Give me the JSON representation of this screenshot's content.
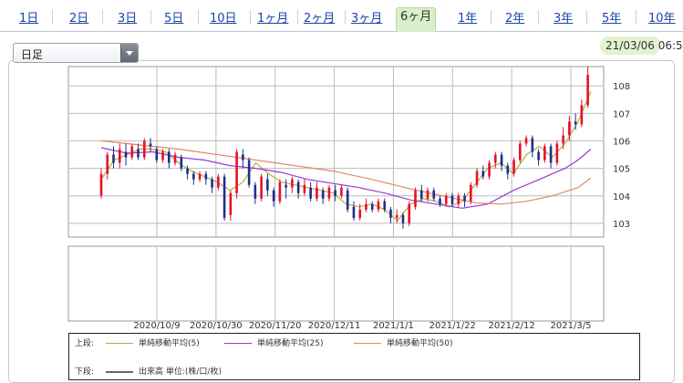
{
  "tabs": [
    {
      "label": "1日",
      "active": false
    },
    {
      "label": "2日",
      "active": false
    },
    {
      "label": "3日",
      "active": false
    },
    {
      "label": "5日",
      "active": false
    },
    {
      "label": "10日",
      "active": false
    },
    {
      "label": "1ヶ月",
      "active": false
    },
    {
      "label": "2ヶ月",
      "active": false
    },
    {
      "label": "3ヶ月",
      "active": false
    },
    {
      "label": "6ヶ月",
      "active": true
    },
    {
      "label": "1年",
      "active": false
    },
    {
      "label": "2年",
      "active": false
    },
    {
      "label": "3年",
      "active": false
    },
    {
      "label": "5年",
      "active": false
    },
    {
      "label": "10年",
      "active": false
    }
  ],
  "period_select": {
    "value": "日足"
  },
  "timestamp": "21/03/06 06:5",
  "legend": {
    "upper_label": "上段:",
    "lower_label": "下段:",
    "ma5": "単純移動平均(5)",
    "ma25": "単純移動平均(25)",
    "ma50": "単純移動平均(50)",
    "volume": "出来高 単位:(株/口/枚)"
  },
  "colors": {
    "up_candle": "#e8102a",
    "down_candle": "#1d2f8c",
    "ma5": "#b5b03c",
    "ma25": "#9a38d6",
    "ma50": "#e0886a",
    "tab_active_bg": "#d8efc9"
  },
  "chart_data": {
    "type": "candlestick",
    "ylim": [
      102.5,
      108.7
    ],
    "y_ticks": [
      103,
      104,
      105,
      106,
      107,
      108
    ],
    "x_ticks": [
      "2020/10/9",
      "2020/10/30",
      "2020/11/20",
      "2020/12/11",
      "2021/1/1",
      "2021/1/22",
      "2021/2/12",
      "2021/3/5"
    ],
    "series": [
      {
        "name": "単純移動平均(5)",
        "points": [
          [
            0,
            104.6
          ],
          [
            5,
            105.3
          ],
          [
            10,
            105.5
          ],
          [
            15,
            105.7
          ],
          [
            20,
            105.7
          ],
          [
            25,
            105.6
          ],
          [
            30,
            105.2
          ],
          [
            35,
            104.9
          ],
          [
            40,
            104.7
          ],
          [
            45,
            104.5
          ],
          [
            50,
            104.2
          ],
          [
            55,
            104.5
          ],
          [
            60,
            105.2
          ],
          [
            65,
            104.8
          ],
          [
            70,
            104.5
          ],
          [
            75,
            104.4
          ],
          [
            80,
            104.3
          ],
          [
            85,
            104.2
          ],
          [
            90,
            104.1
          ],
          [
            95,
            103.7
          ],
          [
            100,
            103.6
          ],
          [
            105,
            103.7
          ],
          [
            110,
            103.5
          ],
          [
            115,
            103.1
          ],
          [
            120,
            103.7
          ],
          [
            125,
            103.9
          ],
          [
            130,
            103.8
          ],
          [
            135,
            103.6
          ],
          [
            140,
            103.8
          ],
          [
            145,
            104.4
          ],
          [
            150,
            105.0
          ],
          [
            155,
            105.2
          ],
          [
            160,
            104.8
          ],
          [
            165,
            105.5
          ],
          [
            170,
            105.8
          ],
          [
            175,
            105.4
          ],
          [
            180,
            105.9
          ],
          [
            185,
            106.7
          ],
          [
            190,
            107.8
          ]
        ]
      },
      {
        "name": "単純移動平均(25)",
        "points": [
          [
            0,
            105.75
          ],
          [
            10,
            105.55
          ],
          [
            20,
            105.6
          ],
          [
            30,
            105.4
          ],
          [
            40,
            105.3
          ],
          [
            50,
            105.1
          ],
          [
            60,
            105.0
          ],
          [
            70,
            104.85
          ],
          [
            80,
            104.6
          ],
          [
            90,
            104.45
          ],
          [
            100,
            104.3
          ],
          [
            110,
            104.1
          ],
          [
            120,
            103.85
          ],
          [
            130,
            103.7
          ],
          [
            140,
            103.55
          ],
          [
            150,
            103.7
          ],
          [
            160,
            104.2
          ],
          [
            170,
            104.6
          ],
          [
            180,
            105.0
          ],
          [
            185,
            105.3
          ],
          [
            190,
            105.7
          ]
        ]
      },
      {
        "name": "単純移動平均(50)",
        "points": [
          [
            0,
            106.0
          ],
          [
            15,
            105.85
          ],
          [
            30,
            105.7
          ],
          [
            45,
            105.5
          ],
          [
            60,
            105.3
          ],
          [
            75,
            105.1
          ],
          [
            90,
            104.9
          ],
          [
            105,
            104.6
          ],
          [
            120,
            104.25
          ],
          [
            135,
            103.95
          ],
          [
            145,
            103.75
          ],
          [
            155,
            103.7
          ],
          [
            165,
            103.8
          ],
          [
            175,
            104.0
          ],
          [
            185,
            104.3
          ],
          [
            190,
            104.65
          ]
        ]
      }
    ],
    "candles": [
      [
        0,
        104.0,
        104.8,
        103.9,
        105.0
      ],
      [
        2,
        104.8,
        105.5,
        104.6,
        105.6
      ],
      [
        4,
        105.5,
        105.2,
        105.0,
        105.8
      ],
      [
        6,
        105.2,
        105.7,
        105.0,
        105.9
      ],
      [
        8,
        105.6,
        105.4,
        105.1,
        105.9
      ],
      [
        10,
        105.4,
        105.8,
        105.3,
        105.9
      ],
      [
        12,
        105.7,
        105.4,
        105.3,
        105.9
      ],
      [
        14,
        105.4,
        106.0,
        105.3,
        106.1
      ],
      [
        16,
        105.9,
        105.8,
        105.6,
        106.1
      ],
      [
        18,
        105.7,
        105.3,
        105.2,
        105.8
      ],
      [
        20,
        105.3,
        105.6,
        105.2,
        105.7
      ],
      [
        22,
        105.6,
        105.2,
        105.0,
        105.7
      ],
      [
        24,
        105.2,
        105.5,
        105.1,
        105.6
      ],
      [
        26,
        105.4,
        105.0,
        104.9,
        105.5
      ],
      [
        28,
        105.0,
        104.8,
        104.6,
        105.1
      ],
      [
        30,
        104.8,
        104.6,
        104.4,
        104.9
      ],
      [
        32,
        104.6,
        104.8,
        104.5,
        104.9
      ],
      [
        34,
        104.8,
        104.6,
        104.4,
        104.9
      ],
      [
        36,
        104.6,
        104.3,
        104.1,
        104.7
      ],
      [
        38,
        104.3,
        104.7,
        104.2,
        104.8
      ],
      [
        40,
        104.7,
        103.2,
        103.1,
        104.8
      ],
      [
        42,
        103.3,
        104.1,
        103.1,
        104.2
      ],
      [
        44,
        104.1,
        105.6,
        103.9,
        105.7
      ],
      [
        46,
        105.5,
        105.3,
        105.0,
        105.7
      ],
      [
        48,
        105.3,
        104.4,
        104.3,
        105.4
      ],
      [
        50,
        104.4,
        103.9,
        103.7,
        104.5
      ],
      [
        52,
        103.9,
        104.7,
        103.8,
        104.8
      ],
      [
        54,
        104.6,
        104.2,
        104.0,
        104.8
      ],
      [
        56,
        104.2,
        103.8,
        103.6,
        104.3
      ],
      [
        58,
        103.8,
        104.5,
        103.7,
        104.6
      ],
      [
        60,
        104.4,
        104.3,
        103.9,
        104.6
      ],
      [
        62,
        104.3,
        104.6,
        104.1,
        104.7
      ],
      [
        64,
        104.5,
        104.1,
        103.9,
        104.6
      ],
      [
        66,
        104.1,
        104.4,
        104.0,
        104.6
      ],
      [
        68,
        104.3,
        103.9,
        103.8,
        104.5
      ],
      [
        70,
        103.9,
        104.3,
        103.8,
        104.5
      ],
      [
        72,
        104.2,
        103.9,
        103.7,
        104.3
      ],
      [
        74,
        103.9,
        104.3,
        103.8,
        104.4
      ],
      [
        76,
        104.2,
        104.0,
        103.8,
        104.4
      ],
      [
        78,
        104.0,
        104.3,
        103.9,
        104.4
      ],
      [
        80,
        104.2,
        103.5,
        103.4,
        104.3
      ],
      [
        82,
        103.6,
        103.2,
        103.1,
        103.8
      ],
      [
        84,
        103.2,
        103.5,
        103.1,
        103.7
      ],
      [
        86,
        103.5,
        103.7,
        103.4,
        103.9
      ],
      [
        88,
        103.7,
        103.5,
        103.4,
        103.8
      ],
      [
        90,
        103.5,
        103.8,
        103.4,
        103.9
      ],
      [
        92,
        103.8,
        103.5,
        103.4,
        103.9
      ],
      [
        94,
        103.5,
        103.2,
        103.0,
        103.6
      ],
      [
        96,
        103.2,
        103.3,
        103.0,
        103.5
      ],
      [
        98,
        103.3,
        103.0,
        102.8,
        103.4
      ],
      [
        100,
        103.0,
        103.7,
        102.9,
        103.8
      ],
      [
        102,
        103.6,
        104.2,
        103.5,
        104.3
      ],
      [
        104,
        104.2,
        103.9,
        103.8,
        104.4
      ],
      [
        106,
        103.9,
        104.2,
        103.8,
        104.3
      ],
      [
        108,
        104.2,
        103.9,
        103.8,
        104.3
      ],
      [
        110,
        103.9,
        103.7,
        103.6,
        104.0
      ],
      [
        112,
        103.7,
        104.0,
        103.6,
        104.1
      ],
      [
        114,
        104.0,
        103.7,
        103.6,
        104.1
      ],
      [
        116,
        103.7,
        104.0,
        103.6,
        104.1
      ],
      [
        118,
        104.0,
        103.8,
        103.6,
        104.1
      ],
      [
        120,
        103.8,
        104.4,
        103.7,
        104.5
      ],
      [
        122,
        104.4,
        104.9,
        104.3,
        105.0
      ],
      [
        124,
        104.9,
        104.7,
        104.6,
        105.1
      ],
      [
        126,
        104.7,
        105.2,
        104.6,
        105.3
      ],
      [
        128,
        105.2,
        105.5,
        105.0,
        105.6
      ],
      [
        130,
        105.5,
        105.1,
        104.9,
        105.6
      ],
      [
        132,
        105.1,
        104.8,
        104.6,
        105.2
      ],
      [
        134,
        104.8,
        105.3,
        104.7,
        105.4
      ],
      [
        136,
        105.3,
        105.9,
        105.2,
        106.0
      ],
      [
        138,
        105.9,
        106.1,
        105.8,
        106.2
      ],
      [
        140,
        106.1,
        105.6,
        105.4,
        106.2
      ],
      [
        142,
        105.6,
        105.3,
        105.1,
        105.7
      ],
      [
        144,
        105.3,
        105.8,
        105.2,
        105.9
      ],
      [
        146,
        105.8,
        105.2,
        105.0,
        105.9
      ],
      [
        148,
        105.2,
        105.9,
        105.1,
        106.0
      ],
      [
        150,
        105.9,
        106.2,
        105.7,
        106.5
      ],
      [
        152,
        106.2,
        106.7,
        106.0,
        106.9
      ],
      [
        154,
        106.7,
        106.6,
        106.4,
        107.0
      ],
      [
        156,
        106.6,
        107.3,
        106.5,
        107.5
      ],
      [
        158,
        107.3,
        108.4,
        107.2,
        108.7
      ]
    ],
    "candle_x_max": 159
  }
}
